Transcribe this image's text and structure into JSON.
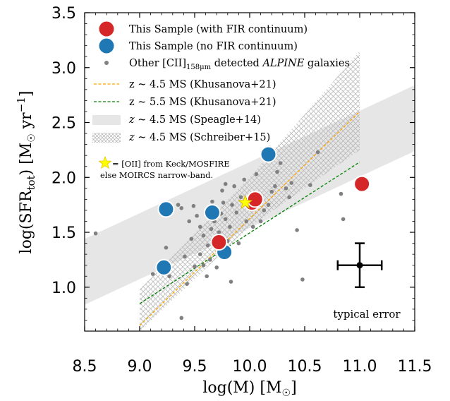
{
  "chart_data": {
    "type": "scatter",
    "xlabel": "log(M) [M",
    "xlabel_suffix": "]",
    "ylabel": "log(SFR",
    "ylabel_sub": "tot",
    "ylabel_mid": ") [M",
    "ylabel_unit": " yr",
    "ylabel_exp": "−1",
    "ylabel_end": "]",
    "xlim": [
      8.5,
      11.5
    ],
    "ylim": [
      0.6,
      3.5
    ],
    "xticks": [
      "8.5",
      "9.0",
      "9.5",
      "10.0",
      "10.5",
      "11.0",
      "11.5"
    ],
    "yticks": [
      "1.0",
      "1.5",
      "2.0",
      "2.5",
      "3.0",
      "3.5"
    ],
    "xtick_values": [
      8.5,
      9.0,
      9.5,
      10.0,
      10.5,
      11.0,
      11.5
    ],
    "ytick_values": [
      1.0,
      1.5,
      2.0,
      2.5,
      3.0,
      3.5
    ],
    "colors": {
      "fir": "#d62728",
      "nofir": "#1f77b4",
      "other": "#808080",
      "khus45": "#ffa500",
      "khus55": "#008000",
      "speagle": "#e6e6e6",
      "schreiber_hatch": "#b8b8b8",
      "star": "#ffff00"
    },
    "legend": {
      "fir": "This Sample (with FIR continuum)",
      "nofir": "This Sample (no FIR continuum)",
      "other_pre": "Other [CII]",
      "other_sub": "158μm",
      "other_mid": " detected ",
      "other_it": "ALPINE",
      "other_post": " galaxies",
      "khus45": "z ~ 4.5 MS (Khusanova+21)",
      "khus55": "z ~ 5.5 MS (Khusanova+21)",
      "speagle_z": "z",
      "speagle": " ~ 4.5 MS (Speagle+14)",
      "schreiber_z": "z",
      "schreiber": " ~ 4.5 MS (Schreiber+15)"
    },
    "note": {
      "line1": "= [OII] from Keck/MOSFIRE",
      "line2": "else MOIRCS narrow-band."
    },
    "error_label": "typical error",
    "typical_error": {
      "x": 11.0,
      "y": 1.2,
      "xerr": 0.2,
      "yerr": 0.2
    },
    "speagle_band": {
      "x": [
        8.5,
        11.5
      ],
      "lower": [
        0.84,
        2.24
      ],
      "upper": [
        1.44,
        2.84
      ]
    },
    "schreiber_band": {
      "x": [
        9.0,
        10.0,
        11.0
      ],
      "lower": [
        0.6,
        1.55,
        2.25
      ],
      "upper": [
        0.98,
        2.0,
        3.15
      ]
    },
    "khusanova_45": {
      "x": [
        9.0,
        11.0
      ],
      "y": [
        0.65,
        2.6
      ]
    },
    "khusanova_55": {
      "x": [
        9.0,
        11.0
      ],
      "y": [
        0.85,
        2.14
      ]
    },
    "series": [
      {
        "name": "This Sample (with FIR continuum)",
        "points": [
          [
            9.72,
            1.41
          ],
          [
            10.02,
            1.77
          ],
          [
            10.05,
            1.8
          ],
          [
            11.02,
            1.94
          ]
        ]
      },
      {
        "name": "This Sample (no FIR continuum)",
        "points": [
          [
            9.22,
            1.18
          ],
          [
            9.24,
            1.71
          ],
          [
            9.66,
            1.68
          ],
          [
            9.77,
            1.32
          ],
          [
            10.17,
            2.21
          ]
        ]
      },
      {
        "name": "Other [CII]158μm detected ALPINE galaxies",
        "points": [
          [
            8.6,
            1.49
          ],
          [
            9.12,
            1.12
          ],
          [
            9.19,
            1.21
          ],
          [
            9.24,
            1.36
          ],
          [
            9.27,
            1.1
          ],
          [
            9.35,
            1.75
          ],
          [
            9.38,
            1.72
          ],
          [
            9.41,
            1.28
          ],
          [
            9.43,
            1.03
          ],
          [
            9.45,
            1.6
          ],
          [
            9.47,
            1.44
          ],
          [
            9.49,
            1.74
          ],
          [
            9.5,
            1.19
          ],
          [
            9.52,
            1.65
          ],
          [
            9.55,
            1.3
          ],
          [
            9.55,
            1.55
          ],
          [
            9.58,
            1.47
          ],
          [
            9.58,
            1.2
          ],
          [
            9.61,
            1.1
          ],
          [
            9.62,
            1.38
          ],
          [
            9.64,
            1.25
          ],
          [
            9.65,
            1.53
          ],
          [
            9.66,
            1.78
          ],
          [
            9.68,
            1.6
          ],
          [
            9.7,
            1.18
          ],
          [
            9.72,
            1.5
          ],
          [
            9.74,
            1.67
          ],
          [
            9.74,
            1.38
          ],
          [
            9.75,
            1.88
          ],
          [
            9.76,
            1.77
          ],
          [
            9.78,
            1.62
          ],
          [
            9.8,
            1.42
          ],
          [
            9.82,
            1.55
          ],
          [
            9.83,
            1.05
          ],
          [
            9.84,
            1.75
          ],
          [
            9.86,
            1.92
          ],
          [
            9.88,
            1.68
          ],
          [
            9.9,
            1.4
          ],
          [
            9.92,
            1.82
          ],
          [
            9.95,
            1.98
          ],
          [
            9.97,
            1.6
          ],
          [
            10.0,
            1.72
          ],
          [
            10.03,
            1.55
          ],
          [
            10.06,
            2.03
          ],
          [
            10.1,
            1.6
          ],
          [
            10.13,
            1.7
          ],
          [
            10.17,
            1.75
          ],
          [
            10.2,
            1.87
          ],
          [
            10.23,
            1.92
          ],
          [
            10.25,
            2.05
          ],
          [
            10.28,
            2.13
          ],
          [
            10.33,
            1.9
          ],
          [
            10.36,
            1.82
          ],
          [
            10.38,
            1.95
          ],
          [
            10.43,
            1.52
          ],
          [
            10.48,
            1.07
          ],
          [
            10.55,
            1.93
          ],
          [
            10.62,
            2.23
          ],
          [
            10.83,
            1.85
          ],
          [
            10.85,
            1.62
          ],
          [
            9.38,
            0.72
          ],
          [
            9.78,
            1.94
          ],
          [
            10.18,
            2.27
          ]
        ]
      }
    ],
    "oii_stars": [
      [
        9.96,
        1.77
      ]
    ]
  }
}
